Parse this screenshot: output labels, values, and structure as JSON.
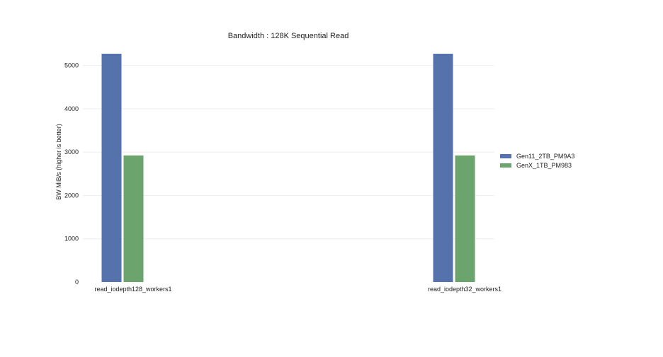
{
  "chart_data": {
    "type": "bar",
    "title": "Bandwidth : 128K Sequential Read",
    "xlabel": "",
    "ylabel": "BW MiB/s  (higher is better)",
    "categories": [
      "read_iodepth128_workers1",
      "read_iodepth32_workers1"
    ],
    "series": [
      {
        "name": "Gen11_2TB_PM9A3",
        "color": "#5572ad",
        "values": [
          5271,
          5271
        ]
      },
      {
        "name": "GenX_1TB_PM983",
        "color": "#6ba56d",
        "values": [
          2923,
          2923
        ]
      }
    ],
    "ylim": [
      0,
      5271
    ],
    "yticks": [
      0,
      1000,
      2000,
      3000,
      4000,
      5000
    ],
    "grid": true,
    "legend": "right"
  }
}
